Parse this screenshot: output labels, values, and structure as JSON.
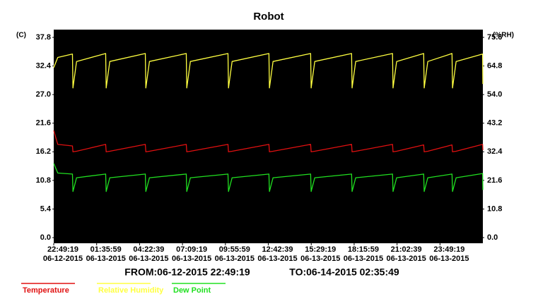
{
  "chart_data": {
    "type": "line",
    "title": "Robot",
    "y_label": "(C)",
    "y2_label": "(%RH)",
    "from_label": "FROM:06-12-2015 22:49:19",
    "to_label": "TO:06-14-2015 02:35:49",
    "xlim": [
      "06-12-2015 22:49:19",
      "06-14-2015 02:35:49"
    ],
    "xticks": [
      {
        "value": "06-12-2015 22:49:19",
        "label": [
          "22:49:19",
          "06-12-2015"
        ]
      },
      {
        "value": "06-13-2015 01:35:59",
        "label": [
          "01:35:59",
          "06-13-2015"
        ]
      },
      {
        "value": "06-13-2015 04:22:39",
        "label": [
          "04:22:39",
          "06-13-2015"
        ]
      },
      {
        "value": "06-13-2015 07:09:19",
        "label": [
          "07:09:19",
          "06-13-2015"
        ]
      },
      {
        "value": "06-13-2015 09:55:59",
        "label": [
          "09:55:59",
          "06-13-2015"
        ]
      },
      {
        "value": "06-13-2015 12:42:39",
        "label": [
          "12:42:39",
          "06-13-2015"
        ]
      },
      {
        "value": "06-13-2015 15:29:19",
        "label": [
          "15:29:19",
          "06-13-2015"
        ]
      },
      {
        "value": "06-13-2015 18:15:59",
        "label": [
          "18:15:59",
          "06-13-2015"
        ]
      },
      {
        "value": "06-13-2015 21:02:39",
        "label": [
          "21:02:39",
          "06-13-2015"
        ]
      },
      {
        "value": "06-13-2015 23:49:19",
        "label": [
          "23:49:19",
          "06-13-2015"
        ]
      }
    ],
    "ylim": [
      0,
      37.8
    ],
    "yticks": [
      {
        "value": 0,
        "label": "0.0"
      },
      5.4,
      10.8,
      16.2,
      21.6,
      {
        "value": 27,
        "label": "27.0"
      },
      32.4,
      37.8
    ],
    "y2lim": [
      0,
      75.6
    ],
    "y2ticks": [
      {
        "value": 0,
        "label": "0.0"
      },
      10.8,
      21.6,
      32.4,
      43.2,
      {
        "value": 54,
        "label": "54.0"
      },
      64.8,
      75.6
    ],
    "grid": false,
    "background": "#000000",
    "x": [
      "06-12-2015 22:49:19",
      "06-12-2015 23:05:00",
      "06-13-2015 00:02:00",
      "06-13-2015 00:04:00",
      "06-13-2015 00:18:00",
      "06-13-2015 02:11:00",
      "06-13-2015 02:13:00",
      "06-13-2015 02:27:00",
      "06-13-2015 04:45:00",
      "06-13-2015 04:47:00",
      "06-13-2015 05:01:00",
      "06-13-2015 07:24:00",
      "06-13-2015 07:26:00",
      "06-13-2015 07:40:00",
      "06-13-2015 10:06:00",
      "06-13-2015 10:08:00",
      "06-13-2015 10:22:00",
      "06-13-2015 12:45:00",
      "06-13-2015 12:47:00",
      "06-13-2015 13:01:00",
      "06-13-2015 15:27:00",
      "06-13-2015 15:29:00",
      "06-13-2015 15:43:00",
      "06-13-2015 18:06:00",
      "06-13-2015 18:08:00",
      "06-13-2015 18:22:00",
      "06-13-2015 20:45:00",
      "06-13-2015 20:47:00",
      "06-13-2015 21:01:00",
      "06-13-2015 22:46:00",
      "06-13-2015 22:48:00",
      "06-13-2015 23:02:00",
      "06-14-2015 00:36:00",
      "06-14-2015 00:38:00",
      "06-14-2015 00:52:00",
      "06-14-2015 02:34:49",
      "06-14-2015 02:35:49"
    ],
    "series": [
      {
        "name": "Temperature",
        "color": "#e01010",
        "axis": "y",
        "values": [
          20.2,
          17.6,
          17.3,
          16.2,
          16.3,
          17.6,
          16.2,
          16.3,
          17.6,
          16.2,
          16.3,
          17.6,
          16.2,
          16.3,
          17.6,
          16.2,
          16.3,
          17.6,
          16.2,
          16.3,
          17.6,
          16.2,
          16.3,
          17.6,
          16.2,
          16.3,
          17.6,
          16.2,
          16.3,
          17.5,
          16.2,
          16.3,
          17.5,
          16.2,
          16.3,
          17.6,
          16.5
        ]
      },
      {
        "name": "Relative Humidity",
        "color": "#ffff40",
        "axis": "y2",
        "values": [
          64.2,
          68.0,
          69.3,
          56.5,
          66.5,
          69.5,
          56.5,
          66.5,
          69.5,
          56.5,
          66.5,
          69.5,
          56.5,
          66.5,
          69.5,
          56.5,
          66.5,
          69.5,
          56.5,
          66.5,
          69.5,
          56.5,
          66.5,
          69.5,
          56.5,
          66.5,
          69.5,
          56.5,
          66.5,
          69.5,
          56.5,
          66.5,
          69.5,
          56.5,
          66.5,
          69.3,
          58.0
        ]
      },
      {
        "name": "Dew Point",
        "color": "#20e020",
        "axis": "y",
        "values": [
          14.0,
          12.2,
          12.0,
          8.7,
          11.3,
          12.0,
          8.7,
          11.3,
          12.0,
          8.7,
          11.3,
          12.0,
          8.7,
          11.3,
          12.0,
          8.7,
          11.3,
          12.0,
          8.7,
          11.3,
          12.0,
          8.7,
          11.3,
          12.0,
          8.7,
          11.3,
          12.0,
          8.7,
          11.3,
          12.0,
          8.7,
          11.3,
          12.0,
          8.7,
          11.3,
          12.1,
          9.0
        ]
      }
    ]
  }
}
